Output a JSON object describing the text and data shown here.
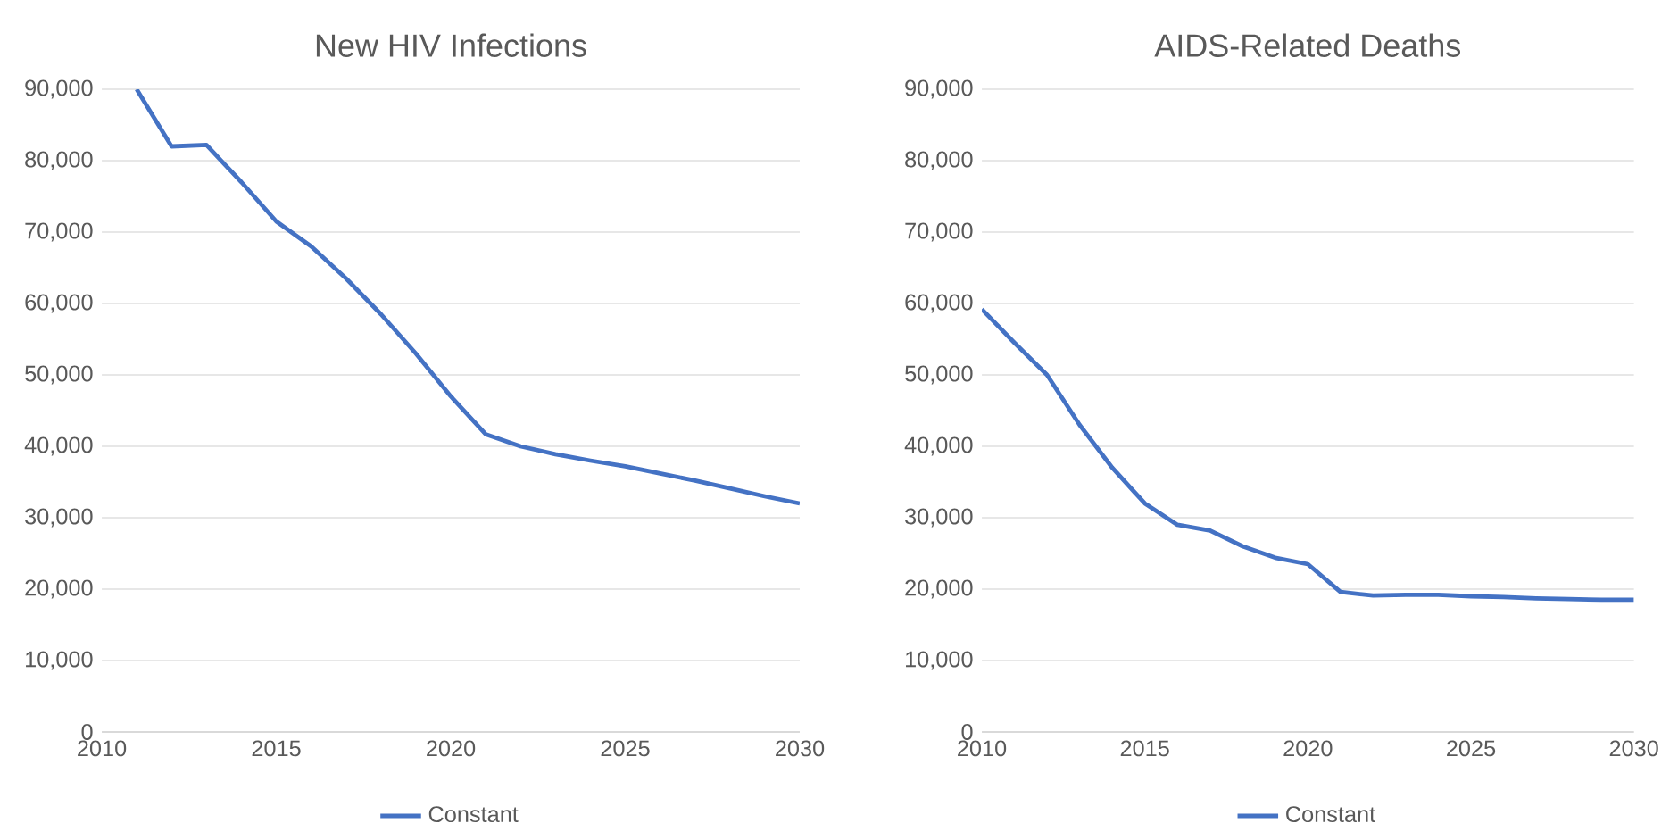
{
  "chart_data": [
    {
      "type": "line",
      "title": "New HIV Infections",
      "x": [
        2011,
        2012,
        2013,
        2014,
        2015,
        2016,
        2017,
        2018,
        2019,
        2020,
        2021,
        2022,
        2023,
        2024,
        2025,
        2026,
        2027,
        2028,
        2029,
        2030
      ],
      "series": [
        {
          "name": "Constant",
          "color": "#4472c4",
          "values": [
            90000,
            82000,
            82200,
            77000,
            71500,
            68000,
            63500,
            58500,
            53000,
            47000,
            41700,
            40000,
            38900,
            38000,
            37200,
            36200,
            35200,
            34100,
            33000,
            32000
          ]
        }
      ],
      "xlim": [
        2010,
        2030
      ],
      "xticks": [
        2010,
        2015,
        2020,
        2025,
        2030
      ],
      "ylim": [
        0,
        90000
      ],
      "yticks": [
        0,
        {
          "value": 10000,
          "label": "10,000"
        },
        {
          "value": 20000,
          "label": "20,000"
        },
        {
          "value": 30000,
          "label": "30,000"
        },
        {
          "value": 40000,
          "label": "40,000"
        },
        {
          "value": 50000,
          "label": "50,000"
        },
        {
          "value": 60000,
          "label": "60,000"
        },
        {
          "value": 70000,
          "label": "70,000"
        },
        {
          "value": 80000,
          "label": "80,000"
        },
        {
          "value": 90000,
          "label": "90,000"
        }
      ],
      "grid": "y",
      "legend": "bottom"
    },
    {
      "type": "line",
      "title": "AIDS-Related Deaths",
      "x": [
        2010,
        2011,
        2012,
        2013,
        2014,
        2015,
        2016,
        2017,
        2018,
        2019,
        2020,
        2021,
        2022,
        2023,
        2024,
        2025,
        2026,
        2027,
        2028,
        2029,
        2030
      ],
      "series": [
        {
          "name": "Constant",
          "color": "#4472c4",
          "values": [
            59200,
            54500,
            50000,
            43000,
            37000,
            32000,
            29000,
            28200,
            26000,
            24400,
            23500,
            19600,
            19100,
            19200,
            19200,
            19000,
            18900,
            18700,
            18600,
            18500,
            18500
          ]
        }
      ],
      "xlim": [
        2010,
        2030
      ],
      "xticks": [
        2010,
        2015,
        2020,
        2025,
        2030
      ],
      "ylim": [
        0,
        90000
      ],
      "yticks": [
        0,
        {
          "value": 10000,
          "label": "10,000"
        },
        {
          "value": 20000,
          "label": "20,000"
        },
        {
          "value": 30000,
          "label": "30,000"
        },
        {
          "value": 40000,
          "label": "40,000"
        },
        {
          "value": 50000,
          "label": "50,000"
        },
        {
          "value": 60000,
          "label": "60,000"
        },
        {
          "value": 70000,
          "label": "70,000"
        },
        {
          "value": 80000,
          "label": "80,000"
        },
        {
          "value": 90000,
          "label": "90,000"
        }
      ],
      "grid": "y",
      "legend": "bottom"
    }
  ]
}
